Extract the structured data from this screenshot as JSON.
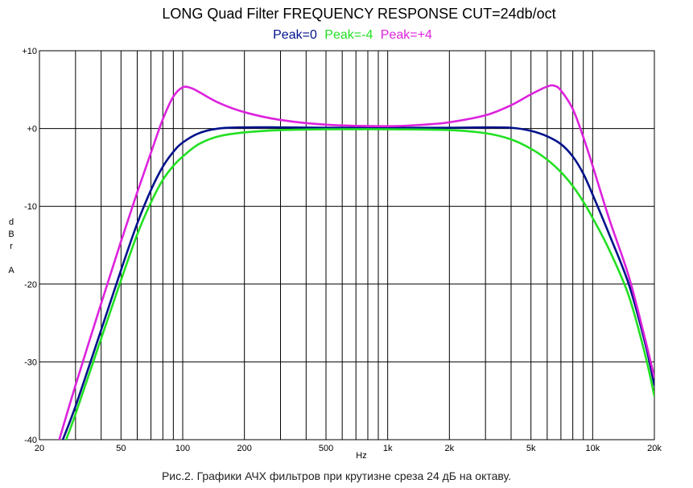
{
  "chart_data": {
    "type": "line",
    "title": "LONG Quad Filter FREQUENCY RESPONSE  CUT=24db/oct",
    "xlabel": "Hz",
    "ylabel": [
      "d",
      "B",
      "r",
      "A"
    ],
    "xscale": "log",
    "xlim": [
      20,
      20000
    ],
    "ylim": [
      -40,
      10
    ],
    "grid": true,
    "legend_position": "top-center",
    "x_tick_labels": [
      {
        "value": 20,
        "label": "20"
      },
      {
        "value": 50,
        "label": "50"
      },
      {
        "value": 100,
        "label": "100"
      },
      {
        "value": 200,
        "label": "200"
      },
      {
        "value": 500,
        "label": "500"
      },
      {
        "value": 1000,
        "label": "1k"
      },
      {
        "value": 2000,
        "label": "2k"
      },
      {
        "value": 5000,
        "label": "5k"
      },
      {
        "value": 10000,
        "label": "10k"
      },
      {
        "value": 20000,
        "label": "20k"
      }
    ],
    "y_tick_labels": [
      {
        "value": 10,
        "label": "+10"
      },
      {
        "value": 0,
        "label": "+0"
      },
      {
        "value": -10,
        "label": "-10"
      },
      {
        "value": -20,
        "label": "-20"
      },
      {
        "value": -30,
        "label": "-30"
      },
      {
        "value": -40,
        "label": "-40"
      }
    ],
    "series": [
      {
        "name": "Peak=0",
        "color": "#00128a",
        "points": [
          [
            26,
            -40
          ],
          [
            30,
            -35.7
          ],
          [
            40,
            -25.9
          ],
          [
            50,
            -18.2
          ],
          [
            60,
            -12.2
          ],
          [
            70,
            -7.9
          ],
          [
            80,
            -4.9
          ],
          [
            90,
            -3
          ],
          [
            100,
            -1.8
          ],
          [
            120,
            -0.6
          ],
          [
            150,
            0
          ],
          [
            200,
            0.15
          ],
          [
            300,
            0.15
          ],
          [
            500,
            0.1
          ],
          [
            1000,
            0.1
          ],
          [
            2000,
            0.1
          ],
          [
            3000,
            0.15
          ],
          [
            4000,
            0.1
          ],
          [
            5000,
            -0.3
          ],
          [
            6000,
            -1
          ],
          [
            7000,
            -2
          ],
          [
            8000,
            -3.6
          ],
          [
            9000,
            -5.8
          ],
          [
            10000,
            -8.5
          ],
          [
            12000,
            -13.5
          ],
          [
            15000,
            -20
          ],
          [
            18000,
            -27.5
          ],
          [
            20000,
            -33
          ]
        ]
      },
      {
        "name": "Peak=-4",
        "color": "#22e022",
        "points": [
          [
            27,
            -40
          ],
          [
            30,
            -36.7
          ],
          [
            40,
            -27
          ],
          [
            50,
            -19.5
          ],
          [
            60,
            -13.6
          ],
          [
            70,
            -9.5
          ],
          [
            80,
            -6.6
          ],
          [
            90,
            -4.8
          ],
          [
            100,
            -3.6
          ],
          [
            120,
            -2
          ],
          [
            150,
            -1
          ],
          [
            200,
            -0.5
          ],
          [
            300,
            -0.2
          ],
          [
            500,
            -0.1
          ],
          [
            1000,
            -0.1
          ],
          [
            2000,
            -0.2
          ],
          [
            3000,
            -0.6
          ],
          [
            4000,
            -1.4
          ],
          [
            5000,
            -2.6
          ],
          [
            6000,
            -4
          ],
          [
            7000,
            -5.6
          ],
          [
            8000,
            -7.4
          ],
          [
            9000,
            -9.4
          ],
          [
            10000,
            -11.5
          ],
          [
            12000,
            -15.5
          ],
          [
            15000,
            -21.5
          ],
          [
            18000,
            -29
          ],
          [
            20000,
            -34.4
          ]
        ]
      },
      {
        "name": "Peak=+4",
        "color": "#dd22dd",
        "points": [
          [
            25,
            -40
          ],
          [
            30,
            -33
          ],
          [
            40,
            -22.5
          ],
          [
            50,
            -14.5
          ],
          [
            60,
            -8.2
          ],
          [
            70,
            -3.1
          ],
          [
            80,
            1.2
          ],
          [
            90,
            4.1
          ],
          [
            100,
            5.3
          ],
          [
            110,
            5.2
          ],
          [
            120,
            4.7
          ],
          [
            150,
            3.3
          ],
          [
            200,
            2.1
          ],
          [
            300,
            1.1
          ],
          [
            500,
            0.5
          ],
          [
            1000,
            0.3
          ],
          [
            1500,
            0.5
          ],
          [
            2000,
            0.8
          ],
          [
            3000,
            1.7
          ],
          [
            4000,
            3
          ],
          [
            5000,
            4.4
          ],
          [
            6000,
            5.4
          ],
          [
            6500,
            5.5
          ],
          [
            7000,
            4.9
          ],
          [
            8000,
            2.5
          ],
          [
            9000,
            -1.1
          ],
          [
            10000,
            -4.8
          ],
          [
            12000,
            -11.5
          ],
          [
            15000,
            -19
          ],
          [
            18000,
            -27
          ],
          [
            20000,
            -32
          ]
        ]
      }
    ]
  },
  "caption": "Рис.2. Графики АЧХ фильтров при крутизне среза 24 дБ на октаву."
}
